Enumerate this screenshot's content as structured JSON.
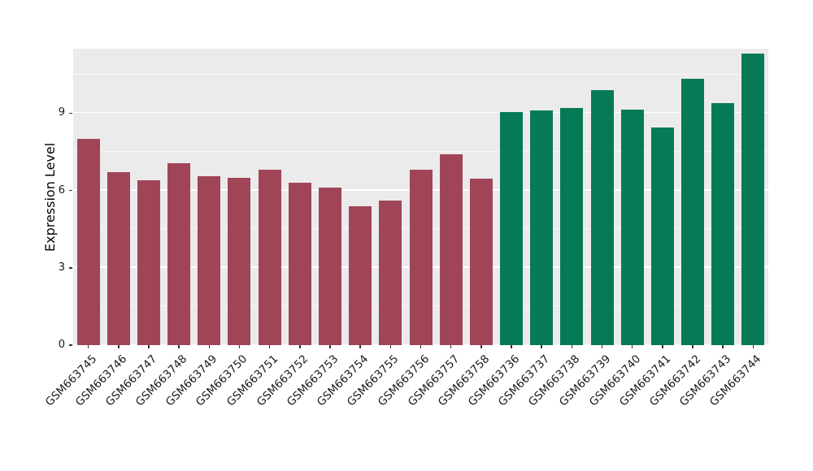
{
  "chart_data": {
    "type": "bar",
    "title": "",
    "xlabel": "",
    "ylabel": "Expression Level",
    "ylim": [
      0,
      11.5
    ],
    "y_ticks": [
      0,
      3,
      6,
      9
    ],
    "grid": true,
    "legend": "none",
    "panel_background": "#EBEBEB",
    "categories": [
      "GSM663745",
      "GSM663746",
      "GSM663747",
      "GSM663748",
      "GSM663749",
      "GSM663750",
      "GSM663751",
      "GSM663752",
      "GSM663753",
      "GSM663754",
      "GSM663755",
      "GSM663756",
      "GSM663757",
      "GSM663758",
      "GSM663736",
      "GSM663737",
      "GSM663738",
      "GSM663739",
      "GSM663740",
      "GSM663741",
      "GSM663742",
      "GSM663743",
      "GSM663744"
    ],
    "values": [
      8.0,
      6.7,
      6.4,
      7.05,
      6.55,
      6.5,
      6.8,
      6.3,
      6.1,
      5.4,
      5.6,
      6.8,
      7.4,
      6.45,
      9.05,
      9.1,
      9.2,
      9.9,
      9.15,
      8.45,
      10.35,
      9.4,
      11.3
    ],
    "bar_groups": [
      "red",
      "red",
      "red",
      "red",
      "red",
      "red",
      "red",
      "red",
      "red",
      "red",
      "red",
      "red",
      "red",
      "red",
      "green",
      "green",
      "green",
      "green",
      "green",
      "green",
      "green",
      "green",
      "green"
    ],
    "group_colors": {
      "red": "#A04557",
      "green": "#067A56"
    }
  }
}
